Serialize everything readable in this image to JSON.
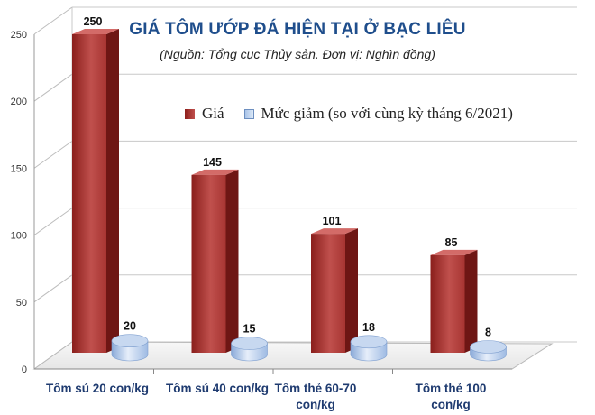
{
  "chart_data": {
    "type": "bar",
    "title": "GIÁ TÔM ƯỚP ĐÁ HIỆN TẠI Ở BẠC LIÊU",
    "subtitle": "(Nguồn: Tổng cục Thủy sản. Đơn vị: Nghìn đồng)",
    "categories": [
      "Tôm sú 20 con/kg",
      "Tôm sú 40 con/kg",
      "Tôm thẻ 60-70 con/kg",
      "Tôm thẻ 100 con/kg"
    ],
    "series": [
      {
        "name": "Giá",
        "values": [
          250,
          145,
          101,
          85
        ],
        "color": "#c0504d"
      },
      {
        "name": "Mức giảm (so với cùng kỳ tháng 6/2021)",
        "values": [
          20,
          15,
          18,
          8
        ],
        "color": "#9dbbe6"
      }
    ],
    "yticks": [
      0,
      50,
      100,
      150,
      200,
      250
    ],
    "ylim": [
      0,
      250
    ],
    "grid": true,
    "legend_position": "top"
  }
}
